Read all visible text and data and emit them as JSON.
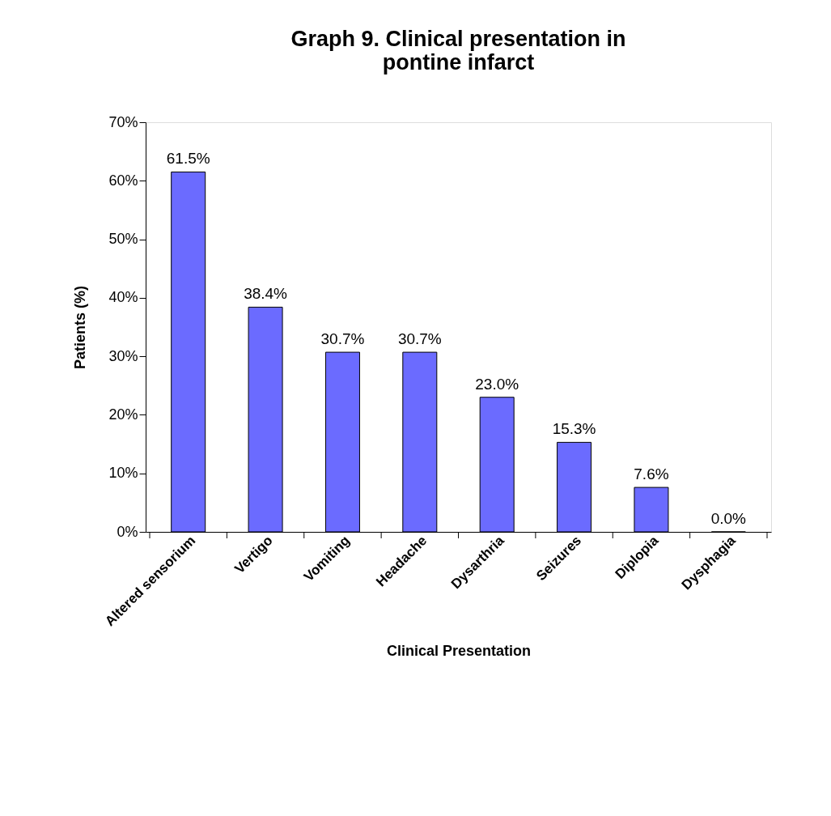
{
  "chart_data": {
    "type": "bar",
    "title": "Graph 9. Clinical presentation in pontine infarct",
    "xlabel": "Clinical Presentation",
    "ylabel": "Patients (%)",
    "categories": [
      "Altered sensorium",
      "Vertigo",
      "Vomiting",
      "Headache",
      "Dysarthria",
      "Seizures",
      "Diplopia",
      "Dysphagia"
    ],
    "values": [
      61.5,
      38.4,
      30.7,
      30.7,
      23.0,
      15.3,
      7.6,
      0.0
    ],
    "value_labels": [
      "61.5%",
      "38.4%",
      "30.7%",
      "30.7%",
      "23.0%",
      "15.3%",
      "7.6%",
      "0.0%"
    ],
    "color": "#6b6bff",
    "ylim": [
      0,
      70
    ],
    "yticks": [
      {
        "value": 0,
        "label": "0%"
      },
      {
        "value": 10,
        "label": "10%"
      },
      {
        "value": 20,
        "label": "20%"
      },
      {
        "value": 30,
        "label": "30%"
      },
      {
        "value": 40,
        "label": "40%"
      },
      {
        "value": 50,
        "label": "50%"
      },
      {
        "value": 60,
        "label": "60%"
      },
      {
        "value": 70,
        "label": "70%"
      }
    ],
    "grid": false
  }
}
